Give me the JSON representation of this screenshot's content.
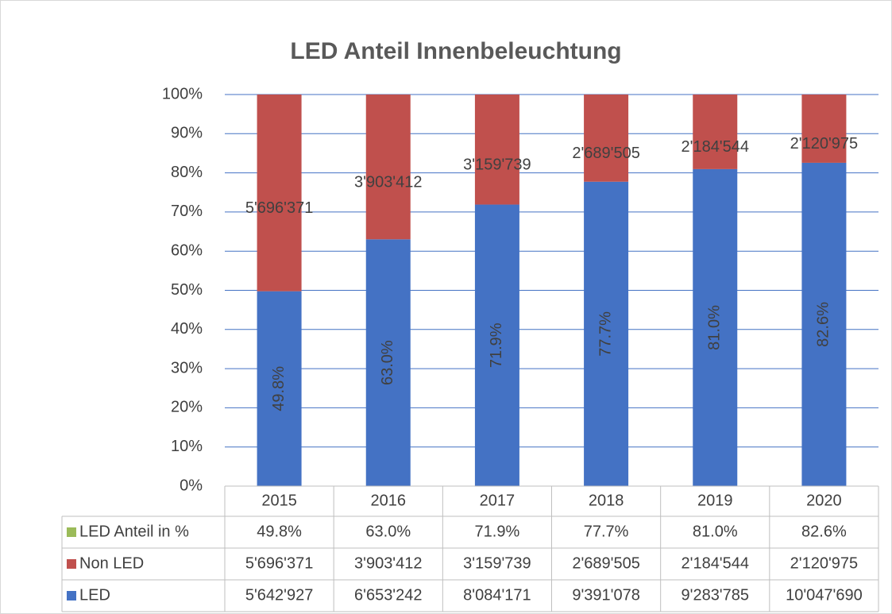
{
  "chart_data": {
    "type": "bar",
    "stacked": "percent",
    "title": "LED Anteil Innenbeleuchtung",
    "categories": [
      "2015",
      "2016",
      "2017",
      "2018",
      "2019",
      "2020"
    ],
    "series": [
      {
        "name": "LED Anteil in %",
        "color": "#9bbb59",
        "values": [
          49.8,
          63.0,
          71.9,
          77.7,
          81.0,
          82.6
        ],
        "value_labels": [
          "49.8%",
          "63.0%",
          "71.9%",
          "77.7%",
          "81.0%",
          "82.6%"
        ]
      },
      {
        "name": "Non LED",
        "color": "#c0504d",
        "values": [
          5696371,
          3903412,
          3159739,
          2689505,
          2184544,
          2120975
        ],
        "value_labels": [
          "5'696'371",
          "3'903'412",
          "3'159'739",
          "2'689'505",
          "2'184'544",
          "2'120'975"
        ]
      },
      {
        "name": "LED",
        "color": "#4472c4",
        "values": [
          5642927,
          6653242,
          8084171,
          9391078,
          9283785,
          10047690
        ],
        "value_labels": [
          "5'642'927",
          "6'653'242",
          "8'084'171",
          "9'391'078",
          "9'283'785",
          "10'047'690"
        ]
      }
    ],
    "ylim": [
      0,
      100
    ],
    "yticks": [
      {
        "value": 0,
        "label": "0%"
      },
      {
        "value": 10,
        "label": "10%"
      },
      {
        "value": 20,
        "label": "20%"
      },
      {
        "value": 30,
        "label": "30%"
      },
      {
        "value": 40,
        "label": "40%"
      },
      {
        "value": 50,
        "label": "50%"
      },
      {
        "value": 60,
        "label": "60%"
      },
      {
        "value": 70,
        "label": "70%"
      },
      {
        "value": 80,
        "label": "80%"
      },
      {
        "value": 90,
        "label": "90%"
      },
      {
        "value": 100,
        "label": "100%"
      }
    ],
    "grid": true,
    "data_table": true
  }
}
